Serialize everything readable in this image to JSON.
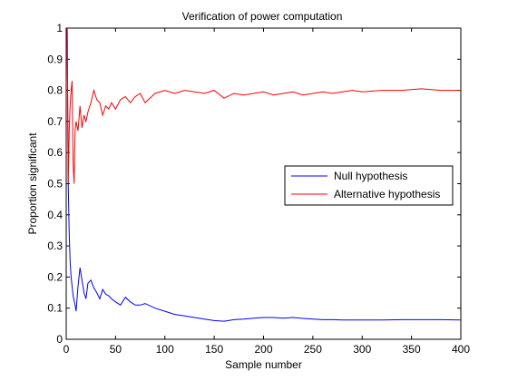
{
  "chart_data": {
    "type": "line",
    "title": "Verification of power computation",
    "xlabel": "Sample number",
    "ylabel": "Proportion significant",
    "xlim": [
      0,
      400
    ],
    "ylim": [
      0,
      1
    ],
    "x_ticks": [
      0,
      50,
      100,
      150,
      200,
      250,
      300,
      350,
      400
    ],
    "y_ticks": [
      0,
      0.1,
      0.2,
      0.3,
      0.4,
      0.5,
      0.6,
      0.7,
      0.8,
      0.9,
      1
    ],
    "grid": false,
    "legend_position": "right",
    "series": [
      {
        "name": "Null hypothesis",
        "color": "#0000ff",
        "x": [
          1,
          2,
          3,
          4,
          5,
          6,
          7,
          8,
          9,
          10,
          12,
          14,
          16,
          18,
          20,
          22,
          25,
          28,
          31,
          34,
          37,
          40,
          43,
          46,
          50,
          55,
          60,
          65,
          70,
          75,
          80,
          90,
          100,
          110,
          120,
          130,
          140,
          150,
          160,
          170,
          180,
          190,
          200,
          210,
          220,
          230,
          240,
          250,
          260,
          270,
          280,
          290,
          300,
          320,
          340,
          360,
          380,
          400
        ],
        "y": [
          1,
          0.5,
          0.34,
          0.25,
          0.2,
          0.17,
          0.14,
          0.125,
          0.11,
          0.09,
          0.17,
          0.23,
          0.19,
          0.15,
          0.13,
          0.18,
          0.19,
          0.165,
          0.15,
          0.13,
          0.16,
          0.145,
          0.14,
          0.13,
          0.12,
          0.11,
          0.135,
          0.12,
          0.11,
          0.11,
          0.115,
          0.1,
          0.09,
          0.08,
          0.075,
          0.07,
          0.065,
          0.06,
          0.058,
          0.063,
          0.065,
          0.068,
          0.07,
          0.07,
          0.068,
          0.07,
          0.067,
          0.065,
          0.063,
          0.063,
          0.062,
          0.062,
          0.062,
          0.062,
          0.063,
          0.063,
          0.063,
          0.062
        ]
      },
      {
        "name": "Alternative hypothesis",
        "color": "#ff0000",
        "x": [
          1,
          2,
          3,
          4,
          5,
          6,
          7,
          8,
          9,
          10,
          12,
          14,
          16,
          18,
          20,
          22,
          25,
          28,
          31,
          34,
          37,
          40,
          43,
          46,
          50,
          55,
          60,
          65,
          70,
          75,
          80,
          90,
          100,
          110,
          120,
          130,
          140,
          150,
          160,
          170,
          180,
          190,
          200,
          210,
          220,
          230,
          240,
          250,
          260,
          270,
          280,
          290,
          300,
          320,
          340,
          360,
          380,
          400
        ],
        "y": [
          1,
          0.5,
          0.67,
          0.75,
          0.8,
          0.83,
          0.57,
          0.5,
          0.67,
          0.7,
          0.67,
          0.75,
          0.68,
          0.72,
          0.7,
          0.73,
          0.76,
          0.8,
          0.77,
          0.76,
          0.72,
          0.75,
          0.74,
          0.76,
          0.74,
          0.77,
          0.78,
          0.76,
          0.78,
          0.79,
          0.76,
          0.79,
          0.8,
          0.79,
          0.8,
          0.795,
          0.79,
          0.8,
          0.775,
          0.79,
          0.785,
          0.79,
          0.795,
          0.785,
          0.79,
          0.795,
          0.785,
          0.79,
          0.795,
          0.79,
          0.795,
          0.8,
          0.795,
          0.8,
          0.8,
          0.805,
          0.8,
          0.8
        ]
      }
    ]
  }
}
